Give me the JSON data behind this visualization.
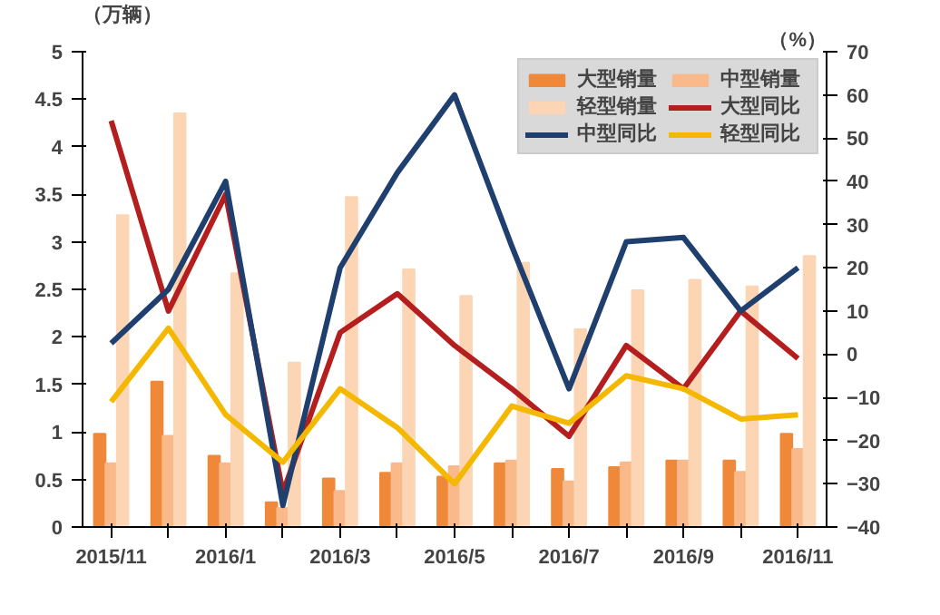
{
  "chart_data": {
    "type": "bar",
    "ylabel": "（万辆）",
    "y2label": "（%）",
    "categories": [
      "2015/11",
      null,
      "2016/1",
      null,
      "2016/3",
      null,
      "2016/5",
      null,
      "2016/7",
      null,
      "2016/9",
      null,
      "2016/11"
    ],
    "series": [
      {
        "name": "大型销量",
        "color": "#f0883a",
        "values": [
          0.98,
          1.53,
          0.75,
          0.26,
          0.51,
          0.57,
          0.53,
          0.67,
          0.61,
          0.63,
          0.7,
          0.7,
          0.98
        ]
      },
      {
        "name": "中型销量",
        "color": "#f9b98a",
        "values": [
          0.67,
          0.96,
          0.67,
          0.2,
          0.38,
          0.67,
          0.64,
          0.7,
          0.48,
          0.68,
          0.7,
          0.58,
          0.82
        ]
      },
      {
        "name": "轻型销量",
        "color": "#fcd5b5",
        "values": [
          3.28,
          4.35,
          2.67,
          1.73,
          3.47,
          2.71,
          2.43,
          2.78,
          2.08,
          2.49,
          2.6,
          2.53,
          2.85
        ]
      },
      {
        "name": "大型同比",
        "type": "line",
        "axis": "y2",
        "color": "#b41e1e",
        "values": [
          54,
          10,
          37,
          -32,
          5,
          14,
          2,
          -8,
          -19,
          2,
          -8,
          10,
          -1
        ]
      },
      {
        "name": "中型同比",
        "type": "line",
        "axis": "y2",
        "color": "#1f3f6e",
        "values": [
          2.5,
          15,
          40,
          -35,
          20,
          42,
          60,
          25,
          -8,
          26,
          27,
          10,
          20
        ]
      },
      {
        "name": "轻型同比",
        "type": "line",
        "axis": "y2",
        "color": "#f5b800",
        "values": [
          -11,
          6,
          -14,
          -25,
          -8,
          -17,
          -30,
          -12,
          -16,
          -5,
          -8,
          -15,
          -14
        ]
      }
    ],
    "ylim": [
      0,
      5
    ],
    "yticks": [
      0,
      0.5,
      1,
      1.5,
      2,
      2.5,
      3,
      3.5,
      4,
      4.5,
      5
    ],
    "y2lim": [
      -40,
      70
    ],
    "y2ticks": [
      -40,
      -30,
      -20,
      -10,
      0,
      10,
      20,
      30,
      40,
      50,
      60,
      70
    ],
    "legend": "top right",
    "grid": false
  }
}
